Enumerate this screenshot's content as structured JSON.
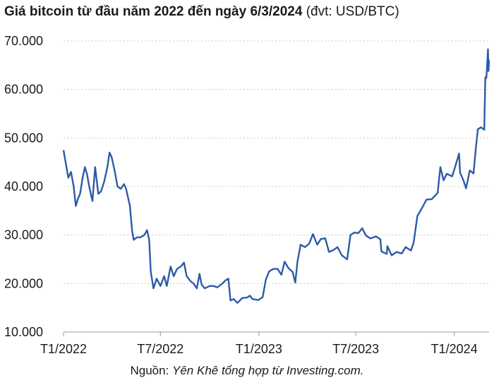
{
  "title": {
    "main": "Giá bitcoin từ đầu năm 2022 đến ngày 6/3/2024",
    "unit": "(đvt: USD/BTC)"
  },
  "source": {
    "prefix": "Nguồn: ",
    "text": "Yên Khê tổng hợp từ Investing.com."
  },
  "colors": {
    "line": "#2e5ba8",
    "grid": "#cccccc",
    "axis": "#999999"
  },
  "chart_data": {
    "type": "line",
    "title": "Giá bitcoin từ đầu năm 2022 đến ngày 6/3/2024",
    "ylabel": "",
    "xlabel": "",
    "ylim": [
      10000,
      70000
    ],
    "yticks": [
      {
        "value": 10000,
        "label": "10.000"
      },
      {
        "value": 20000,
        "label": "20.000"
      },
      {
        "value": 30000,
        "label": "30.000"
      },
      {
        "value": 40000,
        "label": "40.000"
      },
      {
        "value": 50000,
        "label": "50.000"
      },
      {
        "value": 60000,
        "label": "60.000"
      },
      {
        "value": 70000,
        "label": "70.000"
      }
    ],
    "xlim": [
      "2022-01-01",
      "2024-03-06"
    ],
    "xticks": [
      {
        "value": "2022-01-01",
        "label": "T1/2022"
      },
      {
        "value": "2022-07-01",
        "label": "T7/2022"
      },
      {
        "value": "2023-01-01",
        "label": "T1/2023"
      },
      {
        "value": "2023-07-01",
        "label": "T7/2023"
      },
      {
        "value": "2024-01-01",
        "label": "T1/2024"
      }
    ],
    "grid": "horizontal",
    "series": [
      {
        "name": "",
        "points": [
          [
            "2022-01-01",
            47500
          ],
          [
            "2022-01-05",
            45000
          ],
          [
            "2022-01-10",
            41800
          ],
          [
            "2022-01-15",
            43000
          ],
          [
            "2022-01-20",
            40000
          ],
          [
            "2022-01-24",
            36000
          ],
          [
            "2022-01-28",
            37500
          ],
          [
            "2022-02-01",
            38500
          ],
          [
            "2022-02-06",
            42000
          ],
          [
            "2022-02-10",
            44000
          ],
          [
            "2022-02-14",
            42500
          ],
          [
            "2022-02-18",
            40000
          ],
          [
            "2022-02-24",
            37000
          ],
          [
            "2022-03-01",
            44000
          ],
          [
            "2022-03-07",
            38500
          ],
          [
            "2022-03-12",
            39000
          ],
          [
            "2022-03-18",
            41000
          ],
          [
            "2022-03-24",
            44000
          ],
          [
            "2022-03-28",
            47000
          ],
          [
            "2022-04-01",
            46000
          ],
          [
            "2022-04-06",
            43500
          ],
          [
            "2022-04-12",
            40000
          ],
          [
            "2022-04-18",
            39500
          ],
          [
            "2022-04-24",
            40500
          ],
          [
            "2022-04-28",
            39500
          ],
          [
            "2022-05-05",
            36000
          ],
          [
            "2022-05-09",
            31000
          ],
          [
            "2022-05-12",
            29000
          ],
          [
            "2022-05-18",
            29500
          ],
          [
            "2022-05-24",
            29500
          ],
          [
            "2022-06-01",
            30000
          ],
          [
            "2022-06-06",
            31000
          ],
          [
            "2022-06-10",
            29000
          ],
          [
            "2022-06-13",
            22500
          ],
          [
            "2022-06-18",
            19000
          ],
          [
            "2022-06-24",
            21000
          ],
          [
            "2022-07-01",
            19500
          ],
          [
            "2022-07-08",
            21500
          ],
          [
            "2022-07-13",
            19500
          ],
          [
            "2022-07-20",
            23500
          ],
          [
            "2022-07-26",
            21500
          ],
          [
            "2022-08-01",
            23000
          ],
          [
            "2022-08-08",
            23500
          ],
          [
            "2022-08-14",
            24300
          ],
          [
            "2022-08-19",
            21500
          ],
          [
            "2022-08-26",
            20500
          ],
          [
            "2022-09-01",
            20000
          ],
          [
            "2022-09-07",
            19000
          ],
          [
            "2022-09-12",
            22000
          ],
          [
            "2022-09-16",
            19800
          ],
          [
            "2022-09-22",
            19000
          ],
          [
            "2022-10-01",
            19500
          ],
          [
            "2022-10-08",
            19500
          ],
          [
            "2022-10-15",
            19200
          ],
          [
            "2022-10-25",
            20000
          ],
          [
            "2022-10-30",
            20600
          ],
          [
            "2022-11-05",
            21000
          ],
          [
            "2022-11-09",
            16500
          ],
          [
            "2022-11-15",
            16800
          ],
          [
            "2022-11-22",
            16000
          ],
          [
            "2022-12-01",
            17000
          ],
          [
            "2022-12-10",
            17100
          ],
          [
            "2022-12-15",
            17500
          ],
          [
            "2022-12-20",
            16800
          ],
          [
            "2022-12-31",
            16600
          ],
          [
            "2023-01-08",
            17200
          ],
          [
            "2023-01-14",
            20800
          ],
          [
            "2023-01-20",
            22500
          ],
          [
            "2023-01-28",
            23000
          ],
          [
            "2023-02-05",
            23000
          ],
          [
            "2023-02-12",
            21800
          ],
          [
            "2023-02-18",
            24500
          ],
          [
            "2023-02-25",
            23200
          ],
          [
            "2023-03-05",
            22400
          ],
          [
            "2023-03-10",
            20200
          ],
          [
            "2023-03-14",
            24500
          ],
          [
            "2023-03-20",
            28000
          ],
          [
            "2023-03-28",
            27500
          ],
          [
            "2023-04-05",
            28200
          ],
          [
            "2023-04-12",
            30200
          ],
          [
            "2023-04-20",
            28000
          ],
          [
            "2023-04-27",
            29200
          ],
          [
            "2023-05-05",
            29300
          ],
          [
            "2023-05-12",
            26500
          ],
          [
            "2023-05-20",
            26900
          ],
          [
            "2023-05-28",
            27500
          ],
          [
            "2023-06-05",
            25800
          ],
          [
            "2023-06-15",
            25000
          ],
          [
            "2023-06-21",
            30000
          ],
          [
            "2023-06-28",
            30500
          ],
          [
            "2023-07-06",
            30400
          ],
          [
            "2023-07-13",
            31400
          ],
          [
            "2023-07-20",
            29900
          ],
          [
            "2023-07-28",
            29300
          ],
          [
            "2023-08-08",
            29700
          ],
          [
            "2023-08-16",
            29100
          ],
          [
            "2023-08-18",
            26600
          ],
          [
            "2023-08-28",
            26100
          ],
          [
            "2023-08-29",
            27700
          ],
          [
            "2023-09-06",
            25800
          ],
          [
            "2023-09-15",
            26500
          ],
          [
            "2023-09-25",
            26200
          ],
          [
            "2023-10-02",
            27500
          ],
          [
            "2023-10-12",
            26800
          ],
          [
            "2023-10-17",
            28400
          ],
          [
            "2023-10-24",
            33900
          ],
          [
            "2023-11-01",
            35400
          ],
          [
            "2023-11-10",
            37300
          ],
          [
            "2023-11-20",
            37400
          ],
          [
            "2023-12-01",
            38700
          ],
          [
            "2023-12-06",
            44000
          ],
          [
            "2023-12-12",
            41300
          ],
          [
            "2023-12-18",
            42600
          ],
          [
            "2023-12-28",
            42100
          ],
          [
            "2024-01-03",
            44200
          ],
          [
            "2024-01-10",
            46800
          ],
          [
            "2024-01-12",
            42800
          ],
          [
            "2024-01-18",
            41300
          ],
          [
            "2024-01-23",
            39600
          ],
          [
            "2024-01-30",
            43300
          ],
          [
            "2024-02-06",
            42700
          ],
          [
            "2024-02-10",
            47500
          ],
          [
            "2024-02-14",
            51800
          ],
          [
            "2024-02-20",
            52200
          ],
          [
            "2024-02-26",
            51700
          ],
          [
            "2024-02-28",
            62500
          ],
          [
            "2024-03-01",
            62400
          ],
          [
            "2024-03-04",
            68300
          ],
          [
            "2024-03-05",
            63800
          ],
          [
            "2024-03-06",
            66100
          ]
        ]
      }
    ]
  }
}
